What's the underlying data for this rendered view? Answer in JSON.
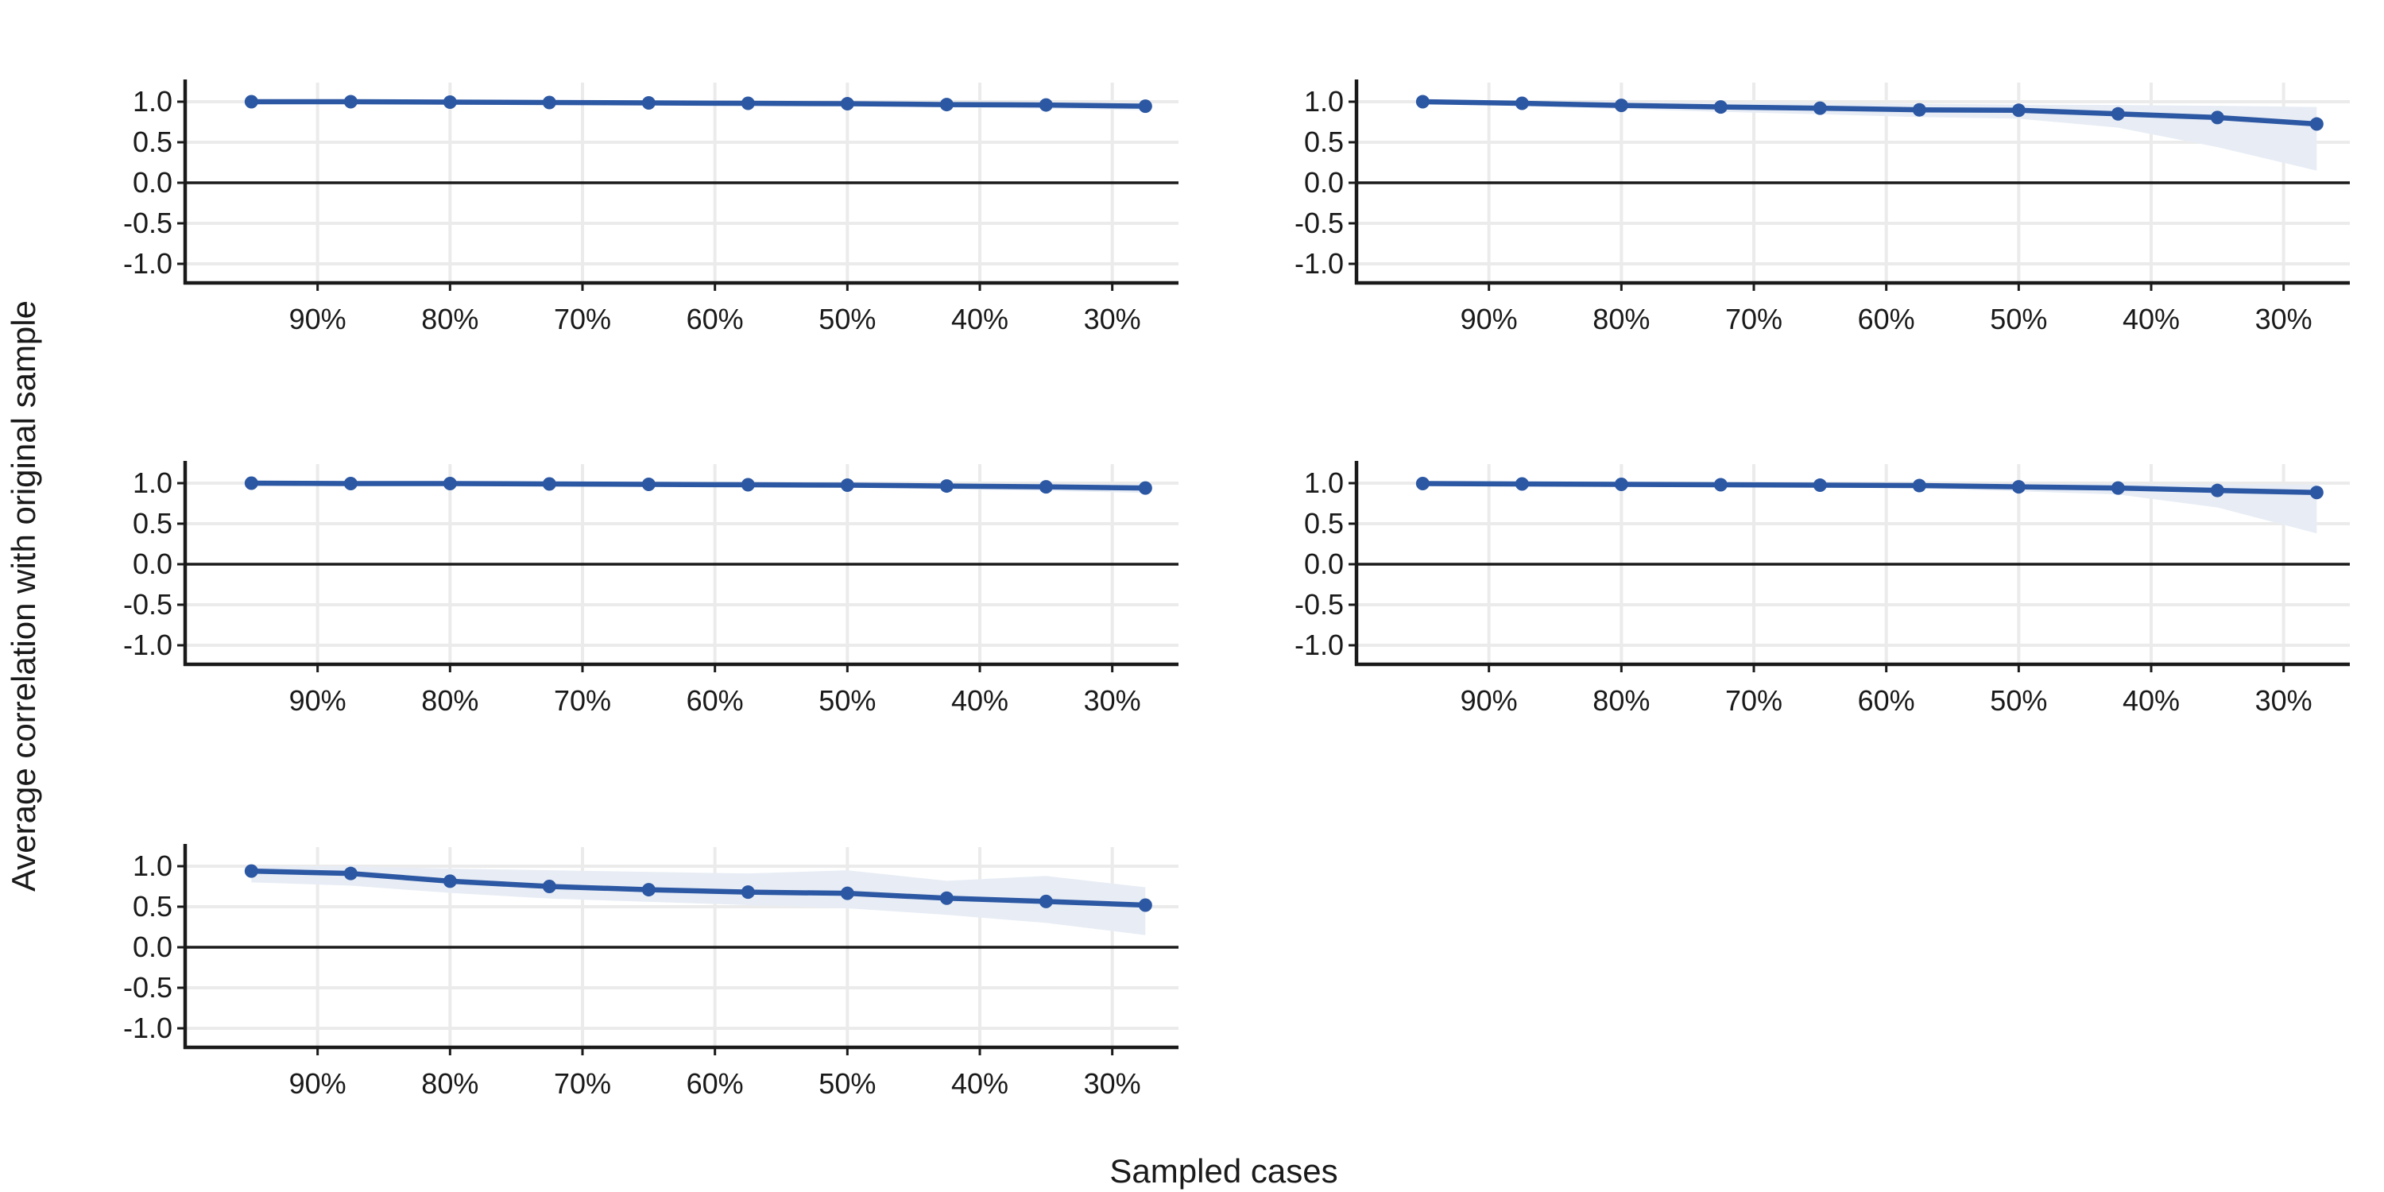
{
  "xlabel": "Sampled cases",
  "ylabel": "Average correlation with original sample",
  "colors": {
    "line": "#2c57a3",
    "band": "#e8edf5",
    "grid": "#ebebeb",
    "axis": "#1a1a1a"
  },
  "chart_data": [
    {
      "type": "line",
      "panel": "top-left",
      "x": [
        "95%",
        "87.5%",
        "80%",
        "72.5%",
        "65%",
        "57.5%",
        "50%",
        "42.5%",
        "35%",
        "27.5%"
      ],
      "x_tick_labels": [
        "90%",
        "80%",
        "70%",
        "60%",
        "50%",
        "40%",
        "30%"
      ],
      "y_tick_labels": [
        "1.0",
        "0.5",
        "0.0",
        "-0.5",
        "-1.0"
      ],
      "ylim": [
        -1.0,
        1.0
      ],
      "x_reversed": true,
      "grid": true,
      "series": [
        {
          "values": [
            1.0,
            1.0,
            0.995,
            0.99,
            0.985,
            0.98,
            0.975,
            0.965,
            0.96,
            0.945
          ],
          "ci_lower": [
            1.0,
            0.995,
            0.985,
            0.975,
            0.965,
            0.955,
            0.945,
            0.93,
            0.915,
            0.895
          ],
          "ci_upper": [
            1.0,
            1.0,
            1.0,
            1.0,
            1.0,
            1.0,
            1.0,
            0.995,
            0.99,
            0.985
          ]
        }
      ]
    },
    {
      "type": "line",
      "panel": "top-right",
      "x": [
        "95%",
        "87.5%",
        "80%",
        "72.5%",
        "65%",
        "57.5%",
        "50%",
        "42.5%",
        "35%",
        "27.5%"
      ],
      "x_tick_labels": [
        "90%",
        "80%",
        "70%",
        "60%",
        "50%",
        "40%",
        "30%"
      ],
      "y_tick_labels": [
        "1.0",
        "0.5",
        "0.0",
        "-0.5",
        "-1.0"
      ],
      "ylim": [
        -1.0,
        1.0
      ],
      "x_reversed": true,
      "grid": true,
      "series": [
        {
          "values": [
            1.0,
            0.98,
            0.955,
            0.935,
            0.92,
            0.9,
            0.895,
            0.85,
            0.805,
            0.725
          ],
          "ci_lower": [
            0.99,
            0.945,
            0.91,
            0.875,
            0.845,
            0.81,
            0.79,
            0.68,
            0.44,
            0.15
          ],
          "ci_upper": [
            1.0,
            1.0,
            0.995,
            0.99,
            0.985,
            0.975,
            0.965,
            0.96,
            0.95,
            0.935
          ]
        }
      ]
    },
    {
      "type": "line",
      "panel": "middle-left",
      "x": [
        "95%",
        "87.5%",
        "80%",
        "72.5%",
        "65%",
        "57.5%",
        "50%",
        "42.5%",
        "35%",
        "27.5%"
      ],
      "x_tick_labels": [
        "90%",
        "80%",
        "70%",
        "60%",
        "50%",
        "40%",
        "30%"
      ],
      "y_tick_labels": [
        "1.0",
        "0.5",
        "0.0",
        "-0.5",
        "-1.0"
      ],
      "ylim": [
        -1.0,
        1.0
      ],
      "x_reversed": true,
      "grid": true,
      "series": [
        {
          "values": [
            1.0,
            0.995,
            0.995,
            0.99,
            0.985,
            0.98,
            0.975,
            0.965,
            0.955,
            0.94
          ],
          "ci_lower": [
            1.0,
            0.99,
            0.985,
            0.975,
            0.965,
            0.955,
            0.945,
            0.925,
            0.905,
            0.88
          ],
          "ci_upper": [
            1.0,
            1.0,
            1.0,
            1.0,
            1.0,
            1.0,
            1.0,
            0.995,
            0.99,
            0.985
          ]
        }
      ]
    },
    {
      "type": "line",
      "panel": "middle-right",
      "x": [
        "95%",
        "87.5%",
        "80%",
        "72.5%",
        "65%",
        "57.5%",
        "50%",
        "42.5%",
        "35%",
        "27.5%"
      ],
      "x_tick_labels": [
        "90%",
        "80%",
        "70%",
        "60%",
        "50%",
        "40%",
        "30%"
      ],
      "y_tick_labels": [
        "1.0",
        "0.5",
        "0.0",
        "-0.5",
        "-1.0"
      ],
      "ylim": [
        -1.0,
        1.0
      ],
      "x_reversed": true,
      "grid": true,
      "series": [
        {
          "values": [
            0.995,
            0.99,
            0.985,
            0.98,
            0.975,
            0.97,
            0.955,
            0.94,
            0.91,
            0.885
          ],
          "ci_lower": [
            0.99,
            0.98,
            0.97,
            0.96,
            0.95,
            0.935,
            0.9,
            0.86,
            0.7,
            0.38
          ],
          "ci_upper": [
            1.0,
            1.0,
            1.0,
            1.0,
            1.0,
            1.0,
            0.995,
            0.99,
            0.985,
            0.98
          ]
        }
      ]
    },
    {
      "type": "line",
      "panel": "bottom-left",
      "x": [
        "95%",
        "87.5%",
        "80%",
        "72.5%",
        "65%",
        "57.5%",
        "50%",
        "42.5%",
        "35%",
        "27.5%"
      ],
      "x_tick_labels": [
        "90%",
        "80%",
        "70%",
        "60%",
        "50%",
        "40%",
        "30%"
      ],
      "y_tick_labels": [
        "1.0",
        "0.5",
        "0.0",
        "-0.5",
        "-1.0"
      ],
      "ylim": [
        -1.0,
        1.0
      ],
      "x_reversed": true,
      "grid": true,
      "series": [
        {
          "values": [
            0.94,
            0.91,
            0.815,
            0.75,
            0.71,
            0.68,
            0.665,
            0.605,
            0.565,
            0.52
          ],
          "ci_lower": [
            0.8,
            0.76,
            0.67,
            0.6,
            0.56,
            0.52,
            0.48,
            0.4,
            0.3,
            0.15
          ],
          "ci_upper": [
            1.0,
            1.0,
            0.97,
            0.95,
            0.93,
            0.91,
            0.95,
            0.82,
            0.88,
            0.74
          ]
        }
      ]
    }
  ]
}
